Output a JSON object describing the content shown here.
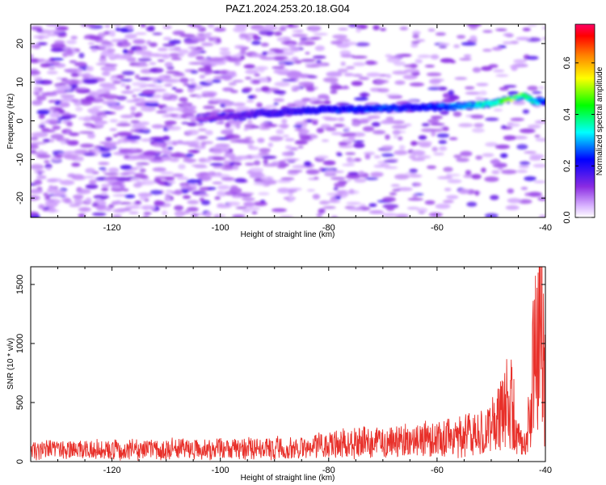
{
  "chart_data": [
    {
      "type": "heatmap",
      "title": "PAZ1.2024.253.20.18.G04",
      "xlabel": "Height of straight line (km)",
      "ylabel": "Frequency (Hz)",
      "xlim": [
        -135,
        -40
      ],
      "ylim": [
        -25,
        25
      ],
      "x_ticks": [
        -120,
        -100,
        -80,
        -60,
        -40
      ],
      "y_ticks": [
        -20,
        -10,
        0,
        10,
        20
      ],
      "colorbar": {
        "label": "Normalized spectral amplitude",
        "range": [
          0.0,
          0.75
        ],
        "ticks": [
          0.0,
          0.2,
          0.4,
          0.6
        ],
        "colors": [
          "#ffffff",
          "#d9b3ff",
          "#8a2be2",
          "#0000ff",
          "#00ffff",
          "#00ff00",
          "#ffff00",
          "#ff8000",
          "#ff0000",
          "#ff0066"
        ]
      },
      "ridge": {
        "description": "Dominant spectral ridge rising from about 2 Hz to 6 Hz",
        "x": [
          -104,
          -92,
          -85,
          -80,
          -75,
          -70,
          -65,
          -60,
          -55,
          -50,
          -47,
          -44,
          -42,
          -40
        ],
        "y": [
          0.5,
          2.0,
          2.5,
          3.0,
          3.0,
          3.2,
          3.5,
          3.5,
          3.8,
          4.5,
          5.5,
          6.5,
          5.0,
          5.0
        ],
        "amplitude": [
          0.1,
          0.22,
          0.25,
          0.3,
          0.32,
          0.35,
          0.3,
          0.32,
          0.42,
          0.55,
          0.7,
          0.6,
          0.45,
          0.35
        ]
      }
    },
    {
      "type": "line",
      "xlabel": "Height of straight line (km)",
      "ylabel": "SNR (10 * v/v)",
      "xlim": [
        -135,
        -40
      ],
      "ylim": [
        0,
        1650
      ],
      "x_ticks": [
        -120,
        -100,
        -80,
        -60,
        -40
      ],
      "y_ticks": [
        0,
        500,
        1000,
        1500
      ],
      "color": "#e8302a",
      "series": [
        {
          "envelope_x": [
            -135,
            -120,
            -100,
            -85,
            -80,
            -70,
            -60,
            -55,
            -50,
            -48,
            -47,
            -46,
            -45,
            -44,
            -43,
            -42,
            -41,
            -40.5,
            -40
          ],
          "envelope_y": [
            120,
            120,
            130,
            140,
            180,
            200,
            230,
            260,
            350,
            500,
            650,
            550,
            250,
            130,
            400,
            1100,
            1550,
            1300,
            700
          ]
        }
      ]
    }
  ]
}
